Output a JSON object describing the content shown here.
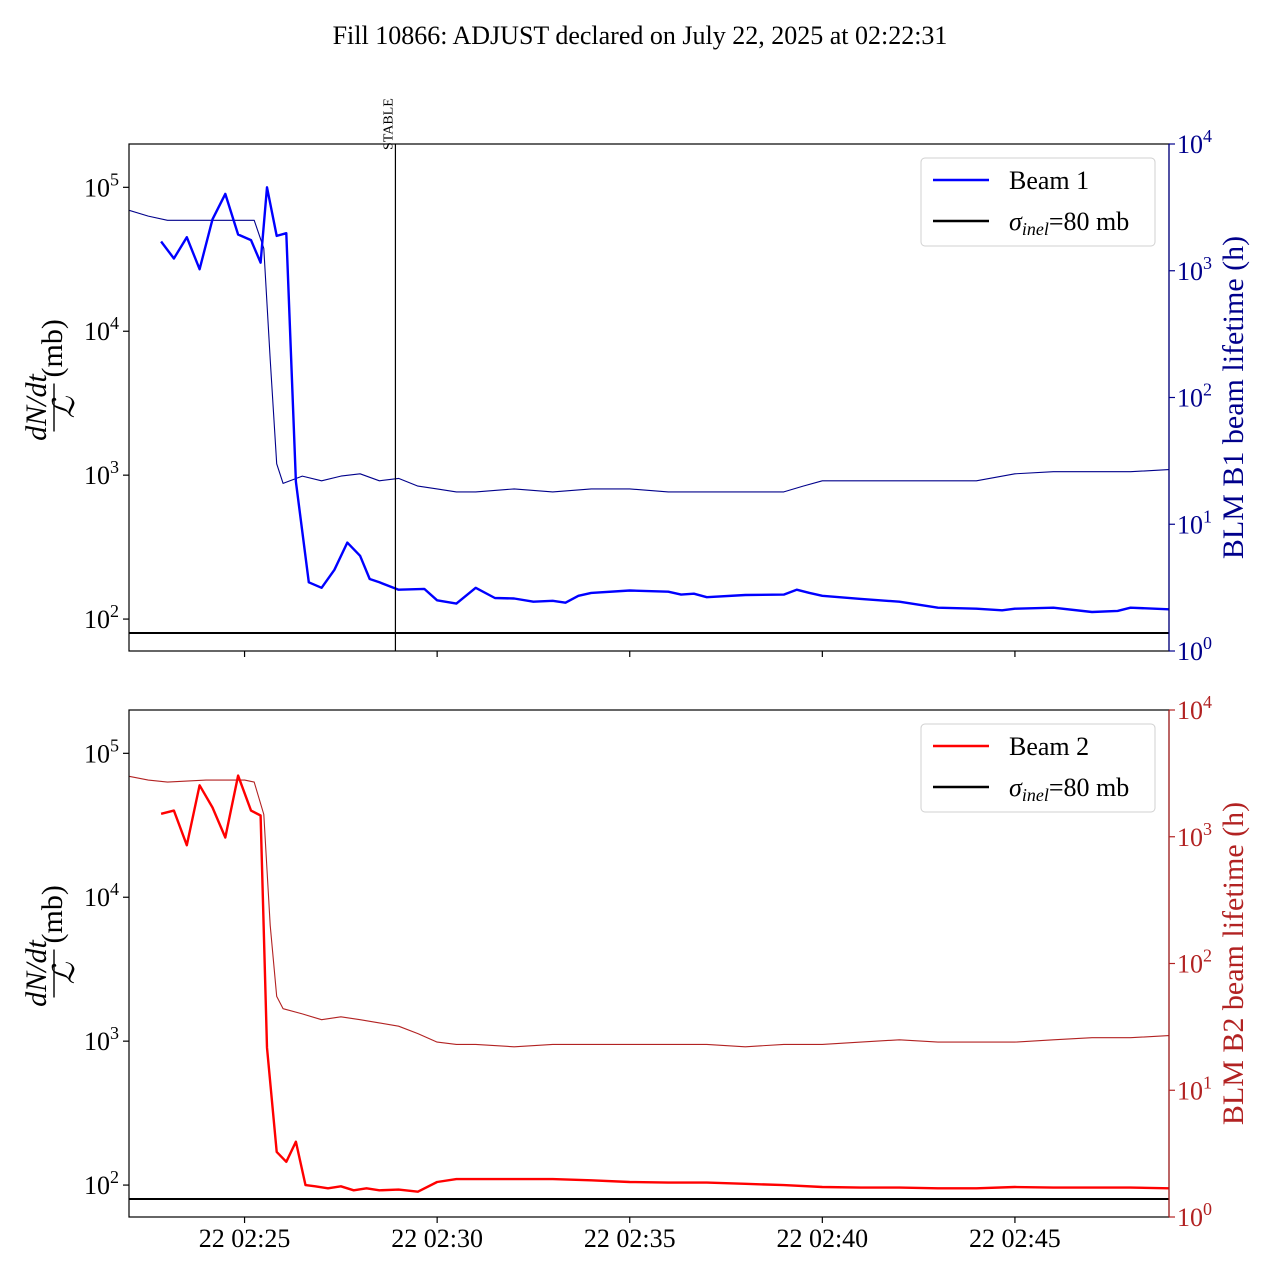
{
  "chart_data": {
    "title": "Fill 10866: ADJUST declared on July 22, 2025 at 02:22:31",
    "x_range": [
      "22 02:22:00",
      "22 02:49:00"
    ],
    "x_tick_labels": [
      "22 02:25",
      "22 02:30",
      "22 02:35",
      "22 02:40",
      "22 02:45"
    ],
    "panels": [
      {
        "type": "line",
        "left_axis": {
          "ylabel_fraction_num": "dN/dt",
          "ylabel_fraction_den": "ℒ",
          "ylabel_unit": "(mb)",
          "scale": "log",
          "ylim": [
            60,
            200000
          ],
          "ticks": [
            "10^5",
            "10^4",
            "10^3",
            "10^2"
          ]
        },
        "right_axis": {
          "ylabel": "BLM B1 beam lifetime (h)",
          "scale": "log",
          "ylim": [
            1,
            10000
          ],
          "ticks": [
            "10^4",
            "10^3",
            "10^2",
            "10^1",
            "10^0"
          ],
          "color": "#00008b"
        },
        "legend": {
          "placement": "top-right",
          "entries": [
            "Beam 1",
            "σinel=80 mb"
          ]
        },
        "annotation": {
          "label": "STABLE",
          "time": "22 02:28:55"
        },
        "reference_line": {
          "name": "σinel=80 mb",
          "value": 80,
          "color": "#000000"
        },
        "series": [
          {
            "name": "Beam 1",
            "axis": "left",
            "color": "#0000ff",
            "t": [
              "02:22:50",
              "02:23:10",
              "02:23:30",
              "02:23:50",
              "02:24:10",
              "02:24:30",
              "02:24:50",
              "02:25:10",
              "02:25:25",
              "02:25:35",
              "02:25:50",
              "02:26:05",
              "02:26:20",
              "02:26:40",
              "02:27:00",
              "02:27:20",
              "02:27:40",
              "02:28:00",
              "02:28:15",
              "02:28:30",
              "02:29:00",
              "02:29:40",
              "02:30:00",
              "02:30:30",
              "02:31:00",
              "02:31:30",
              "02:32:00",
              "02:32:30",
              "02:33:00",
              "02:33:20",
              "02:33:40",
              "02:34:00",
              "02:35:00",
              "02:36:00",
              "02:36:20",
              "02:36:40",
              "02:37:00",
              "02:38:00",
              "02:39:00",
              "02:39:20",
              "02:39:40",
              "02:40:00",
              "02:41:00",
              "02:42:00",
              "02:43:00",
              "02:44:00",
              "02:44:40",
              "02:45:00",
              "02:46:00",
              "02:47:00",
              "02:47:40",
              "02:48:00",
              "02:49:00"
            ],
            "v": [
              42000,
              32000,
              45000,
              27000,
              60000,
              90000,
              47000,
              43000,
              30000,
              100000,
              46000,
              48000,
              900,
              180,
              165,
              220,
              340,
              275,
              190,
              180,
              160,
              162,
              135,
              128,
              165,
              140,
              139,
              132,
              134,
              130,
              145,
              152,
              158,
              155,
              148,
              150,
              142,
              147,
              148,
              160,
              152,
              145,
              138,
              132,
              120,
              118,
              115,
              118,
              120,
              112,
              114,
              120,
              117
            ],
            "v_note": "values in mb"
          },
          {
            "name": "BLM B1 beam lifetime",
            "axis": "right",
            "color": "#00008b",
            "t": [
              "02:22:00",
              "02:22:30",
              "02:23:00",
              "02:24:00",
              "02:25:00",
              "02:25:15",
              "02:25:30",
              "02:25:40",
              "02:25:50",
              "02:26:00",
              "02:26:30",
              "02:27:00",
              "02:27:30",
              "02:28:00",
              "02:28:30",
              "02:29:00",
              "02:29:30",
              "02:30:00",
              "02:30:30",
              "02:31:00",
              "02:32:00",
              "02:33:00",
              "02:34:00",
              "02:35:00",
              "02:36:00",
              "02:37:00",
              "02:38:00",
              "02:39:00",
              "02:39:30",
              "02:40:00",
              "02:42:00",
              "02:44:00",
              "02:45:00",
              "02:46:00",
              "02:47:00",
              "02:48:00",
              "02:49:00"
            ],
            "v": [
              3000,
              2700,
              2500,
              2500,
              2500,
              2500,
              1500,
              200,
              30,
              21,
              24,
              22,
              24,
              25,
              22,
              23,
              20,
              19,
              18,
              18,
              19,
              18,
              19,
              19,
              18,
              18,
              18,
              18,
              20,
              22,
              22,
              22,
              25,
              26,
              26,
              26,
              27
            ]
          }
        ]
      },
      {
        "type": "line",
        "left_axis": {
          "ylabel_fraction_num": "dN/dt",
          "ylabel_fraction_den": "ℒ",
          "ylabel_unit": "(mb)",
          "scale": "log",
          "ylim": [
            60,
            200000
          ],
          "ticks": [
            "10^5",
            "10^4",
            "10^3",
            "10^2"
          ]
        },
        "right_axis": {
          "ylabel": "BLM B2 beam lifetime (h)",
          "scale": "log",
          "ylim": [
            1,
            10000
          ],
          "ticks": [
            "10^4",
            "10^3",
            "10^2",
            "10^1",
            "10^0"
          ],
          "color": "#b22222"
        },
        "legend": {
          "placement": "top-right",
          "entries": [
            "Beam 2",
            "σinel=80 mb"
          ]
        },
        "reference_line": {
          "name": "σinel=80 mb",
          "value": 80,
          "color": "#000000"
        },
        "series": [
          {
            "name": "Beam 2",
            "axis": "left",
            "color": "#ff0000",
            "t": [
              "02:22:50",
              "02:23:10",
              "02:23:30",
              "02:23:50",
              "02:24:10",
              "02:24:30",
              "02:24:50",
              "02:25:10",
              "02:25:25",
              "02:25:35",
              "02:25:50",
              "02:26:05",
              "02:26:20",
              "02:26:35",
              "02:26:50",
              "02:27:10",
              "02:27:30",
              "02:27:50",
              "02:28:10",
              "02:28:30",
              "02:29:00",
              "02:29:30",
              "02:30:00",
              "02:30:30",
              "02:31:00",
              "02:32:00",
              "02:33:00",
              "02:34:00",
              "02:35:00",
              "02:36:00",
              "02:37:00",
              "02:38:00",
              "02:39:00",
              "02:40:00",
              "02:41:00",
              "02:42:00",
              "02:43:00",
              "02:44:00",
              "02:45:00",
              "02:46:00",
              "02:47:00",
              "02:48:00",
              "02:49:00"
            ],
            "v": [
              38000,
              40000,
              23000,
              60000,
              42000,
              26000,
              70000,
              40000,
              37000,
              900,
              170,
              145,
              200,
              100,
              98,
              95,
              98,
              92,
              95,
              92,
              93,
              90,
              105,
              110,
              110,
              110,
              110,
              108,
              105,
              104,
              104,
              102,
              100,
              97,
              96,
              96,
              95,
              95,
              97,
              96,
              96,
              96,
              95
            ],
            "v_note": "values in mb"
          },
          {
            "name": "BLM B2 beam lifetime",
            "axis": "right",
            "color": "#b22222",
            "t": [
              "02:22:00",
              "02:22:30",
              "02:23:00",
              "02:24:00",
              "02:25:00",
              "02:25:15",
              "02:25:30",
              "02:25:40",
              "02:25:50",
              "02:26:00",
              "02:26:30",
              "02:27:00",
              "02:27:30",
              "02:28:00",
              "02:28:30",
              "02:29:00",
              "02:29:30",
              "02:30:00",
              "02:30:30",
              "02:31:00",
              "02:32:00",
              "02:33:00",
              "02:34:00",
              "02:35:00",
              "02:36:00",
              "02:37:00",
              "02:38:00",
              "02:39:00",
              "02:40:00",
              "02:41:00",
              "02:42:00",
              "02:43:00",
              "02:44:00",
              "02:45:00",
              "02:46:00",
              "02:47:00",
              "02:48:00",
              "02:49:00"
            ],
            "v": [
              3000,
              2800,
              2700,
              2800,
              2800,
              2700,
              1500,
              200,
              55,
              44,
              40,
              36,
              38,
              36,
              34,
              32,
              28,
              24,
              23,
              23,
              22,
              23,
              23,
              23,
              23,
              23,
              22,
              23,
              23,
              24,
              25,
              24,
              24,
              24,
              25,
              26,
              26,
              27
            ]
          }
        ]
      }
    ]
  }
}
